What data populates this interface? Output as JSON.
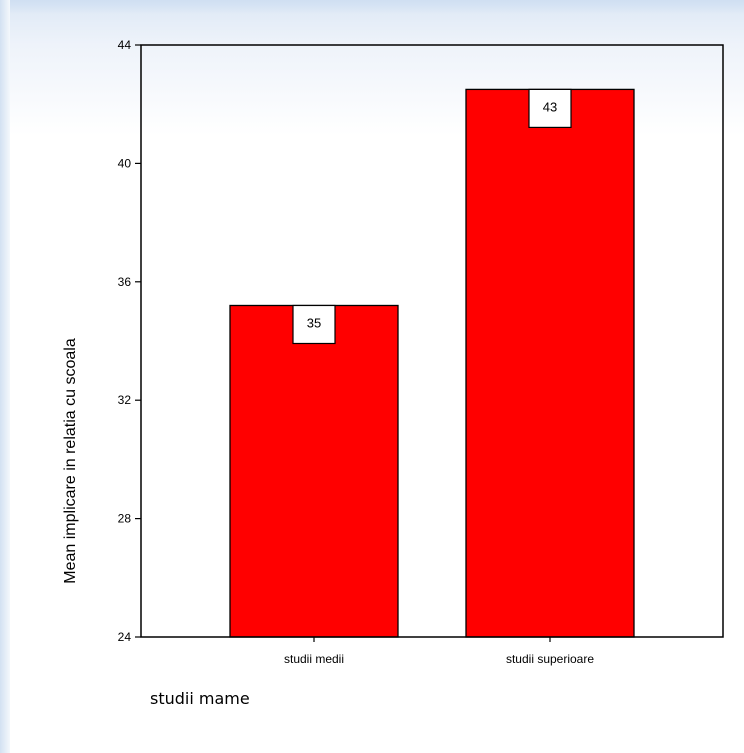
{
  "chart_data": {
    "type": "bar",
    "categories": [
      "studii medii",
      "studii superioare"
    ],
    "values": [
      35.2,
      42.5
    ],
    "data_labels": [
      "35",
      "43"
    ],
    "title": "",
    "xlabel": "studii mame",
    "ylabel": "Mean implicare in relatia cu scoala",
    "ylim": [
      24,
      44
    ],
    "yticks": [
      24,
      28,
      32,
      36,
      40,
      44
    ],
    "grid": false,
    "legend": "none",
    "bar_color": "#ff0000",
    "bar_edge_color": "#000000"
  }
}
